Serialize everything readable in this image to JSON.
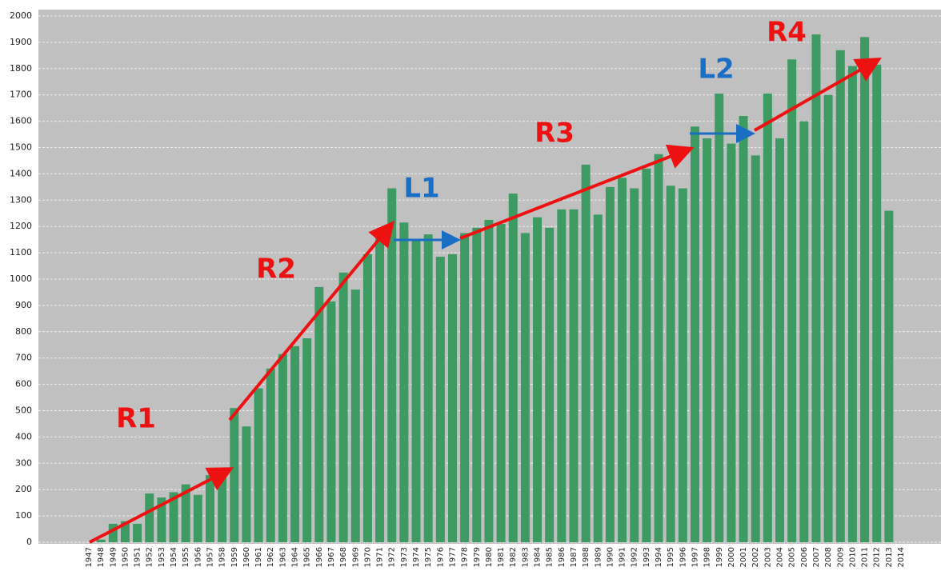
{
  "chart_data": {
    "type": "bar",
    "categories": [
      "1947",
      "1948",
      "1949",
      "1950",
      "1951",
      "1952",
      "1953",
      "1954",
      "1955",
      "1956",
      "1957",
      "1958",
      "1959",
      "1960",
      "1961",
      "1962",
      "1963",
      "1964",
      "1965",
      "1966",
      "1967",
      "1968",
      "1969",
      "1970",
      "1971",
      "1972",
      "1973",
      "1974",
      "1975",
      "1976",
      "1977",
      "1978",
      "1979",
      "1980",
      "1981",
      "1982",
      "1983",
      "1984",
      "1985",
      "1986",
      "1987",
      "1988",
      "1989",
      "1990",
      "1991",
      "1992",
      "1993",
      "1994",
      "1995",
      "1996",
      "1997",
      "1998",
      "1999",
      "2000",
      "2001",
      "2002",
      "2003",
      "2004",
      "2005",
      "2006",
      "2007",
      "2008",
      "2009",
      "2010",
      "2011",
      "2012",
      "2013",
      "2014"
    ],
    "values": [
      0,
      10,
      70,
      80,
      70,
      185,
      170,
      190,
      220,
      180,
      255,
      260,
      510,
      440,
      585,
      660,
      715,
      745,
      775,
      970,
      915,
      1025,
      960,
      1095,
      1175,
      1345,
      1215,
      1150,
      1170,
      1085,
      1095,
      1175,
      1195,
      1225,
      1210,
      1325,
      1175,
      1235,
      1195,
      1265,
      1265,
      1435,
      1245,
      1350,
      1385,
      1345,
      1420,
      1475,
      1355,
      1345,
      1580,
      1535,
      1705,
      1515,
      1620,
      1470,
      1705,
      1535,
      1835,
      1600,
      1930,
      1700,
      1870,
      1810,
      1920,
      1815,
      1260,
      null
    ],
    "color": "#3d9a62",
    "ylim": [
      0,
      2000
    ],
    "yticks": [
      0,
      100,
      200,
      300,
      400,
      500,
      600,
      700,
      800,
      900,
      1000,
      1100,
      1200,
      1300,
      1400,
      1500,
      1600,
      1700,
      1800,
      1900,
      2000
    ],
    "grid": true,
    "annotations": [
      "R1",
      "R2",
      "R3",
      "R4",
      "L1",
      "L2"
    ],
    "annotation_colors": {
      "R": "#ee1111",
      "L": "#1a6fc4"
    }
  }
}
